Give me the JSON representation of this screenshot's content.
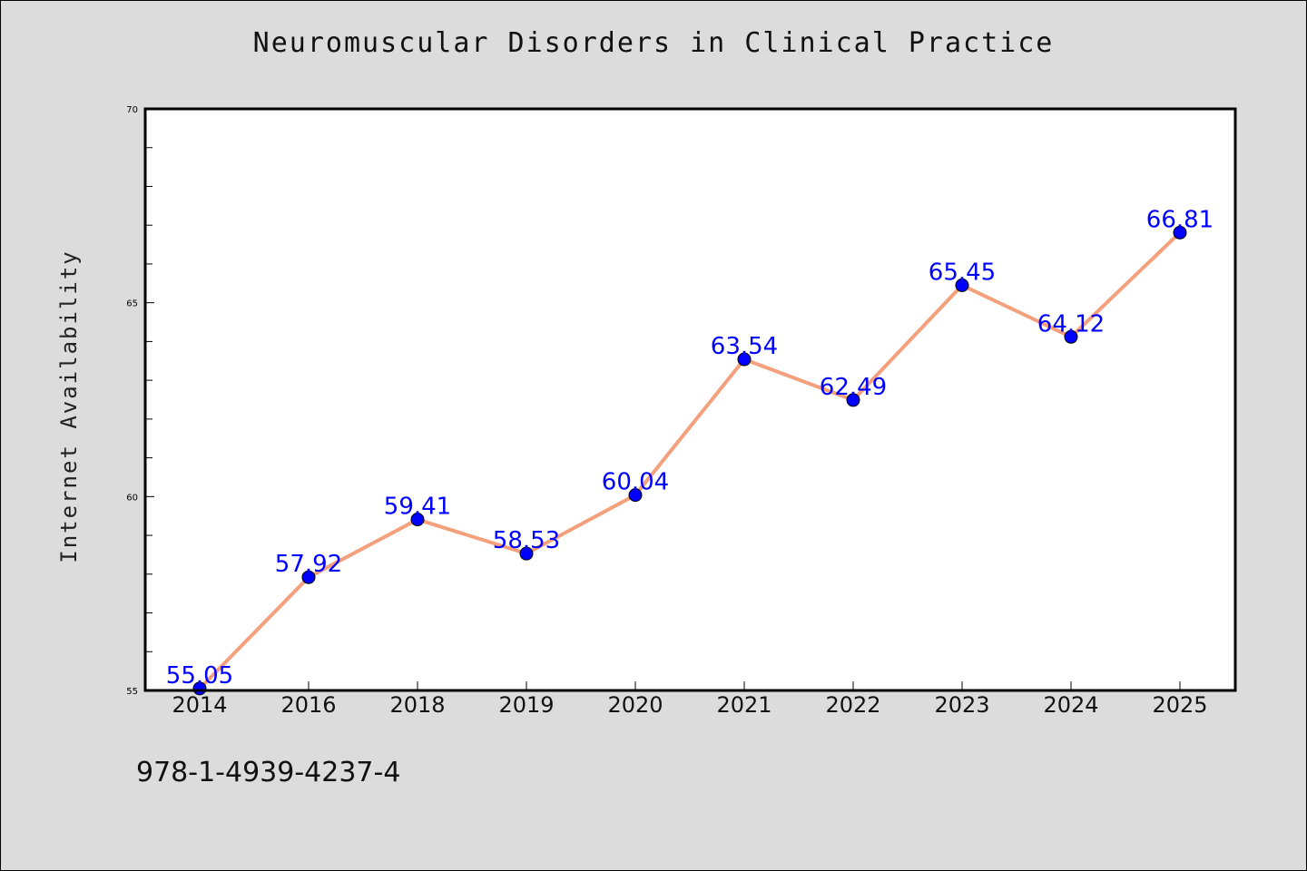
{
  "chart_data": {
    "type": "line",
    "title": "Neuromuscular Disorders in Clinical Practice",
    "xlabel": "",
    "ylabel": "Internet Availability",
    "categories": [
      "2014",
      "2016",
      "2018",
      "2019",
      "2020",
      "2021",
      "2022",
      "2023",
      "2024",
      "2025"
    ],
    "series": [
      {
        "values": [
          55.05,
          57.92,
          59.41,
          58.53,
          60.04,
          63.54,
          62.49,
          65.45,
          64.12,
          66.81
        ],
        "labels": [
          "55.05",
          "57.92",
          "59.41",
          "58.53",
          "60.04",
          "63.54",
          "62.49",
          "65.45",
          "64.12",
          "66.81"
        ]
      }
    ],
    "ylim": [
      55,
      70
    ],
    "yticks": [
      "55",
      "60",
      "65",
      "70"
    ],
    "grid": false,
    "colors": {
      "line": "#f4a07c",
      "marker": "#0000ff",
      "label": "#0000ff",
      "background": "#dcdcdc",
      "plot": "#ffffff"
    }
  },
  "footer": {
    "isbn": "978-1-4939-4237-4"
  }
}
